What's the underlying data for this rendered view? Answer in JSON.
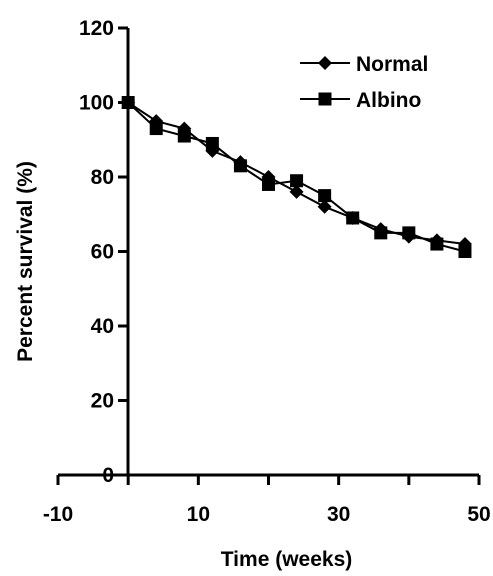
{
  "chart_data": {
    "type": "line",
    "title": "",
    "xlabel": "Time (weeks)",
    "ylabel": "Percent survival (%)",
    "xlim": [
      -10,
      50
    ],
    "ylim": [
      0,
      120
    ],
    "x_ticks": [
      -10,
      10,
      30,
      50
    ],
    "y_ticks": [
      0,
      20,
      40,
      60,
      80,
      100,
      120
    ],
    "grid": false,
    "legend": "top-right",
    "series": [
      {
        "name": "Normal",
        "marker": "diamond",
        "color": "#000000",
        "x": [
          0,
          4,
          8,
          12,
          16,
          20,
          24,
          28,
          32,
          36,
          40,
          44,
          48
        ],
        "y": [
          100,
          95,
          93,
          87,
          84,
          80,
          76,
          72,
          69,
          66,
          64,
          63,
          62
        ]
      },
      {
        "name": "Albino",
        "marker": "square",
        "color": "#000000",
        "x": [
          0,
          4,
          8,
          12,
          16,
          20,
          24,
          28,
          32,
          36,
          40,
          44,
          48
        ],
        "y": [
          100,
          93,
          91,
          89,
          83,
          78,
          79,
          75,
          69,
          65,
          65,
          62,
          60
        ]
      }
    ]
  }
}
